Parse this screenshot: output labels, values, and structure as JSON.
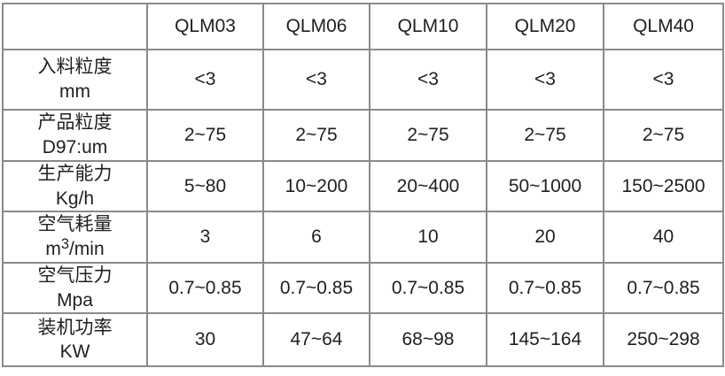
{
  "chart_data": {
    "type": "table",
    "columns": [
      "",
      "QLM03",
      "QLM06",
      "QLM10",
      "QLM20",
      "QLM40"
    ],
    "rows": [
      {
        "param": "入料粒度",
        "unit_pre": "mm",
        "unit_sup": "",
        "unit_post": "",
        "values": [
          "<3",
          "<3",
          "<3",
          "<3",
          "<3"
        ]
      },
      {
        "param": "产品粒度",
        "unit_pre": "D97:um",
        "unit_sup": "",
        "unit_post": "",
        "values": [
          "2~75",
          "2~75",
          "2~75",
          "2~75",
          "2~75"
        ]
      },
      {
        "param": "生产能力",
        "unit_pre": "Kg/h",
        "unit_sup": "",
        "unit_post": "",
        "values": [
          "5~80",
          "10~200",
          "20~400",
          "50~1000",
          "150~2500"
        ]
      },
      {
        "param": "空气耗量",
        "unit_pre": "m",
        "unit_sup": "3",
        "unit_post": "/min",
        "values": [
          "3",
          "6",
          "10",
          "20",
          "40"
        ]
      },
      {
        "param": "空气压力",
        "unit_pre": "Mpa",
        "unit_sup": "",
        "unit_post": "",
        "values": [
          "0.7~0.85",
          "0.7~0.85",
          "0.7~0.85",
          "0.7~0.85",
          "0.7~0.85"
        ]
      },
      {
        "param": "装机功率",
        "unit_pre": "KW",
        "unit_sup": "",
        "unit_post": "",
        "values": [
          "30",
          "47~64",
          "68~98",
          "145~164",
          "250~298"
        ]
      }
    ],
    "colors": {
      "inner_border": "#8a8a8a",
      "outer_border": "#5f5f5f",
      "text": "#1f1f1f",
      "background": "#ffffff"
    }
  }
}
